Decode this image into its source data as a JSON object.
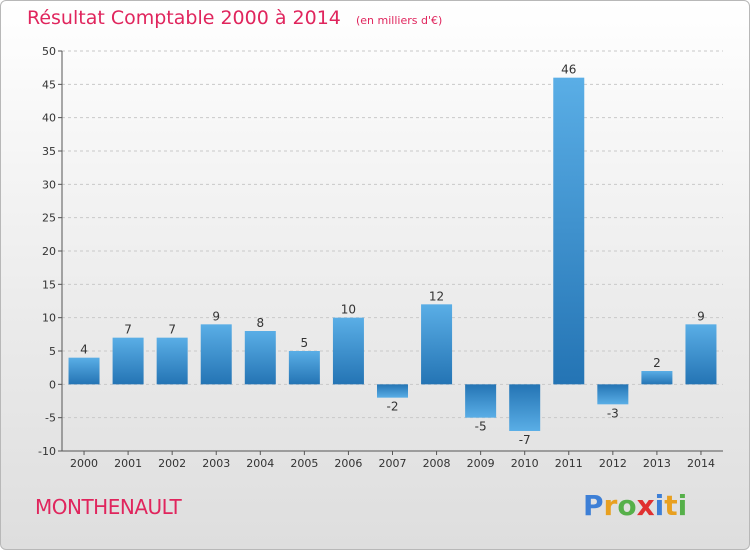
{
  "chart_data": {
    "type": "bar",
    "title": "Résultat Comptable 2000 à 2014",
    "subtitle": "(en milliers d'€)",
    "categories": [
      "2000",
      "2001",
      "2002",
      "2003",
      "2004",
      "2005",
      "2006",
      "2007",
      "2008",
      "2009",
      "2010",
      "2011",
      "2012",
      "2013",
      "2014"
    ],
    "values": [
      4,
      7,
      7,
      9,
      8,
      5,
      10,
      -2,
      12,
      -5,
      -7,
      46,
      -3,
      2,
      9
    ],
    "ylim": [
      -10,
      50
    ],
    "yticks": [
      -10,
      -5,
      0,
      5,
      10,
      15,
      20,
      25,
      30,
      35,
      40,
      45,
      50
    ],
    "grid": true,
    "xlabel": "",
    "ylabel": ""
  },
  "footer": {
    "town": "MONTHENAULT",
    "logo_letters": [
      "P",
      "r",
      "o",
      "x",
      "i",
      "t",
      "i"
    ],
    "logo_colors": [
      "#3d7fd6",
      "#e8a020",
      "#56b04a",
      "#e03030",
      "#3d7fd6",
      "#e8a020",
      "#56b04a"
    ]
  },
  "colors": {
    "accent": "#e0255d",
    "bar_light": "#5aaee6",
    "bar_dark": "#2474b4"
  }
}
